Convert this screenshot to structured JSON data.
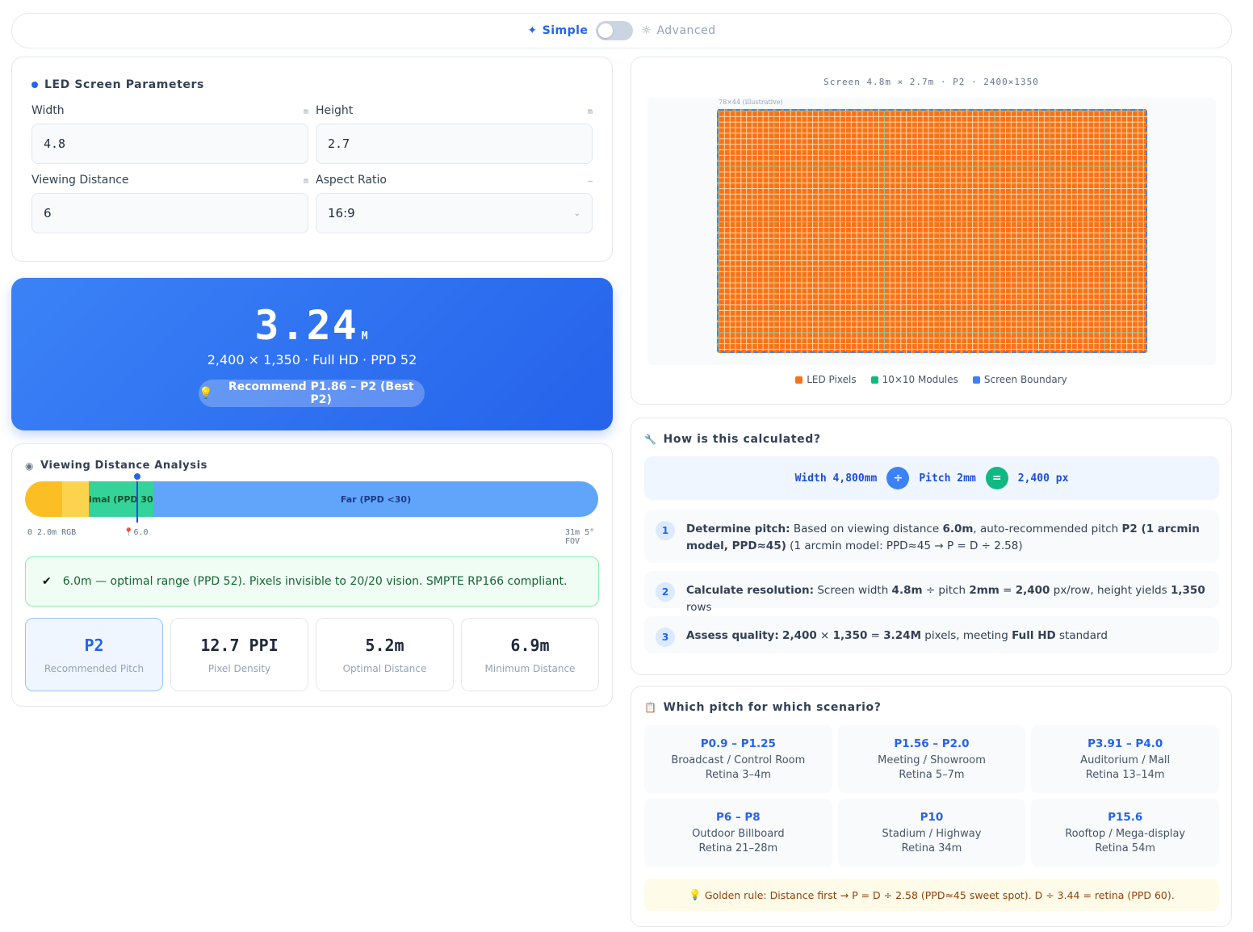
{
  "mode": {
    "simple_label": "Simple",
    "advanced_label": "Advanced"
  },
  "params": {
    "title": "LED Screen Parameters",
    "width": {
      "label": "Width",
      "unit": "m",
      "value": "4.8"
    },
    "height": {
      "label": "Height",
      "unit": "m",
      "value": "2.7"
    },
    "distance": {
      "label": "Viewing Distance",
      "unit": "m",
      "value": "6"
    },
    "aspect": {
      "label": "Aspect Ratio",
      "unit": "–",
      "value": "16:9"
    }
  },
  "result": {
    "value": "3.24",
    "unit": "M",
    "summary": "2,400 × 1,350 · Full HD · PPD 52",
    "recommend": "Recommend P1.86 – P2 (Best P2)"
  },
  "analysis": {
    "title": "Viewing Distance Analysis",
    "seg_optimal": "imal (PPD 30",
    "seg_far": "Far (PPD <30)",
    "scale_left": "0 2.0m RGB",
    "marker": "6.0",
    "scale_right": "31m 5° FOV",
    "marker_fraction": 0.194,
    "notice": "6.0m — optimal range (PPD 52). Pixels invisible to 20/20 vision. SMPTE RP166 compliant.",
    "stats": [
      {
        "value": "P2",
        "label": "Recommended Pitch"
      },
      {
        "value": "12.7 PPI",
        "label": "Pixel Density"
      },
      {
        "value": "5.2m",
        "label": "Optimal Distance"
      },
      {
        "value": "6.9m",
        "label": "Minimum Distance"
      }
    ]
  },
  "preview": {
    "caption": "Screen 4.8m × 2.7m · P2 · 2400×1350",
    "illustrative": "78×44 (illustrative)",
    "legend": [
      {
        "label": "LED Pixels",
        "color": "#f97316"
      },
      {
        "label": "10×10 Modules",
        "color": "#10b981"
      },
      {
        "label": "Screen Boundary",
        "color": "#3b82f6"
      }
    ]
  },
  "how": {
    "title": "How is this calculated?",
    "formula": {
      "a": "Width 4,800mm",
      "op1": "÷",
      "b": "Pitch 2mm",
      "op2": "=",
      "c": "2,400 px"
    },
    "steps": [
      {
        "n": "1",
        "head": "Determine pitch:",
        "t1": " Based on viewing distance ",
        "b1": "6.0m",
        "t2": ", auto-recommended pitch ",
        "b2": "P2 (1 arcmin model, PPD≈45)",
        "t3": " (1 arcmin model: PPD≈45 → P = D ÷ 2.58)"
      },
      {
        "n": "2",
        "head": "Calculate resolution:",
        "t1": " Screen width ",
        "b1": "4.8m",
        "t2": " ÷ pitch ",
        "b2": "2mm",
        "t3": " = ",
        "b3": "2,400",
        "t4": " px/row, height yields ",
        "b4": "1,350",
        "t5": " rows"
      },
      {
        "n": "3",
        "head": "Assess quality:",
        "t1": " ",
        "b1": "2,400",
        "t2": " × ",
        "b2": "1,350",
        "t3": " = ",
        "b3": "3.24M",
        "t4": " pixels, meeting ",
        "b4": "Full HD",
        "t5": " standard"
      }
    ]
  },
  "scenario": {
    "title": "Which pitch for which scenario?",
    "tiles": [
      {
        "pitch": "P0.9 – P1.25",
        "use": "Broadcast / Control Room",
        "retina": "Retina 3–4m"
      },
      {
        "pitch": "P1.56 – P2.0",
        "use": "Meeting / Showroom",
        "retina": "Retina 5–7m"
      },
      {
        "pitch": "P3.91 – P4.0",
        "use": "Auditorium / Mall",
        "retina": "Retina 13–14m"
      },
      {
        "pitch": "P6 – P8",
        "use": "Outdoor Billboard",
        "retina": "Retina 21–28m"
      },
      {
        "pitch": "P10",
        "use": "Stadium / Highway",
        "retina": "Retina 34m"
      },
      {
        "pitch": "P15.6",
        "use": "Rooftop / Mega-display",
        "retina": "Retina 54m"
      }
    ],
    "golden": "Golden rule: Distance first → P = D ÷ 2.58 (PPD≈45 sweet spot). D ÷ 3.44 = retina (PPD 60)."
  }
}
